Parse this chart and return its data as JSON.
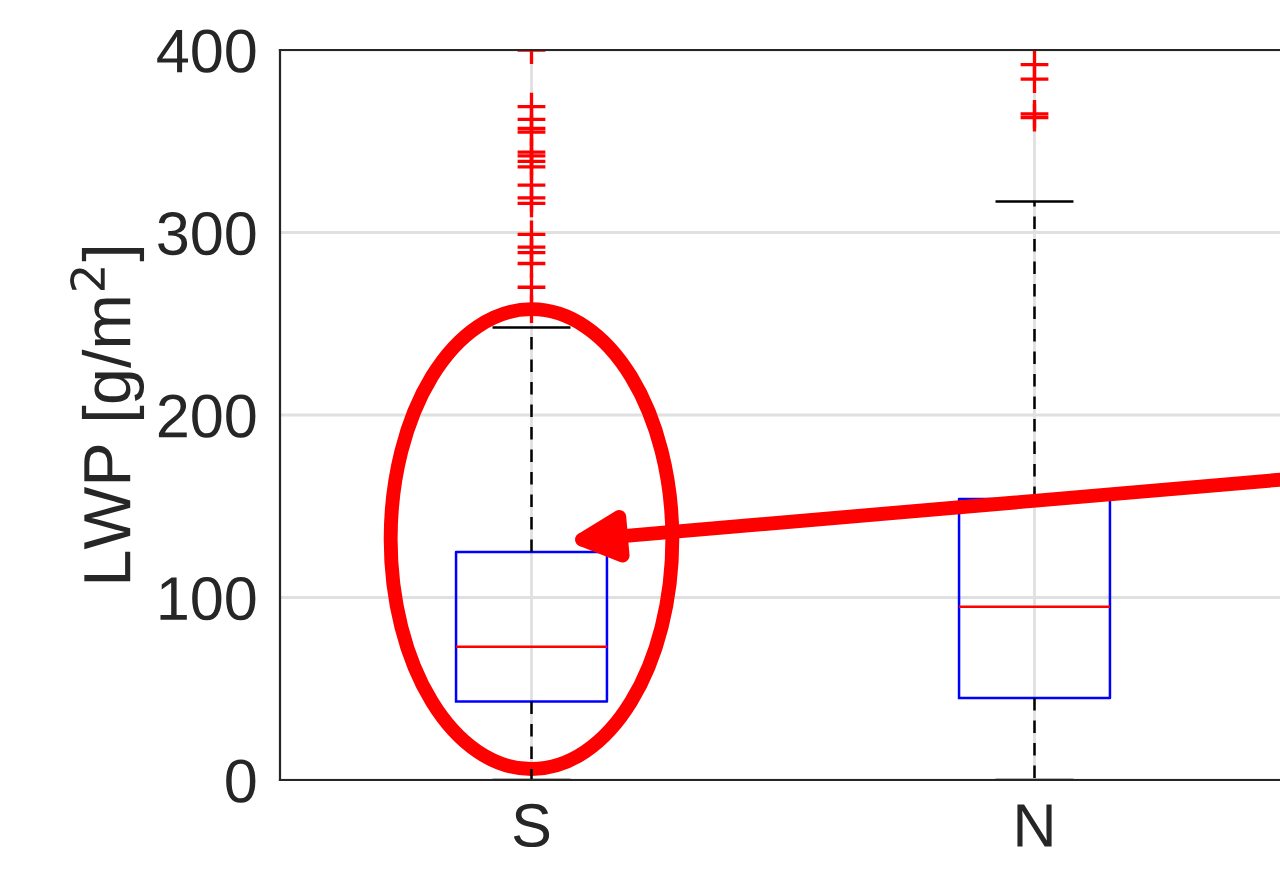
{
  "chart_data": {
    "type": "box",
    "ylabel": "LWP [g/m$^{2}$]",
    "categories": [
      "S",
      "N"
    ],
    "ylim": [
      0,
      400
    ],
    "yticks": [
      0,
      100,
      200,
      300,
      400
    ],
    "grid": true,
    "boxes": [
      {
        "low": 0,
        "q1": 43,
        "median": 73,
        "q3": 125,
        "high": 248,
        "outliers": [
          400,
          369,
          362,
          357,
          355,
          344,
          342,
          339,
          336,
          326,
          319,
          316,
          299,
          292,
          289,
          283,
          270,
          258
        ]
      },
      {
        "low": 0,
        "q1": 45,
        "median": 95,
        "q3": 154,
        "high": 317,
        "outliers": [
          392,
          384,
          365,
          363
        ]
      }
    ]
  }
}
